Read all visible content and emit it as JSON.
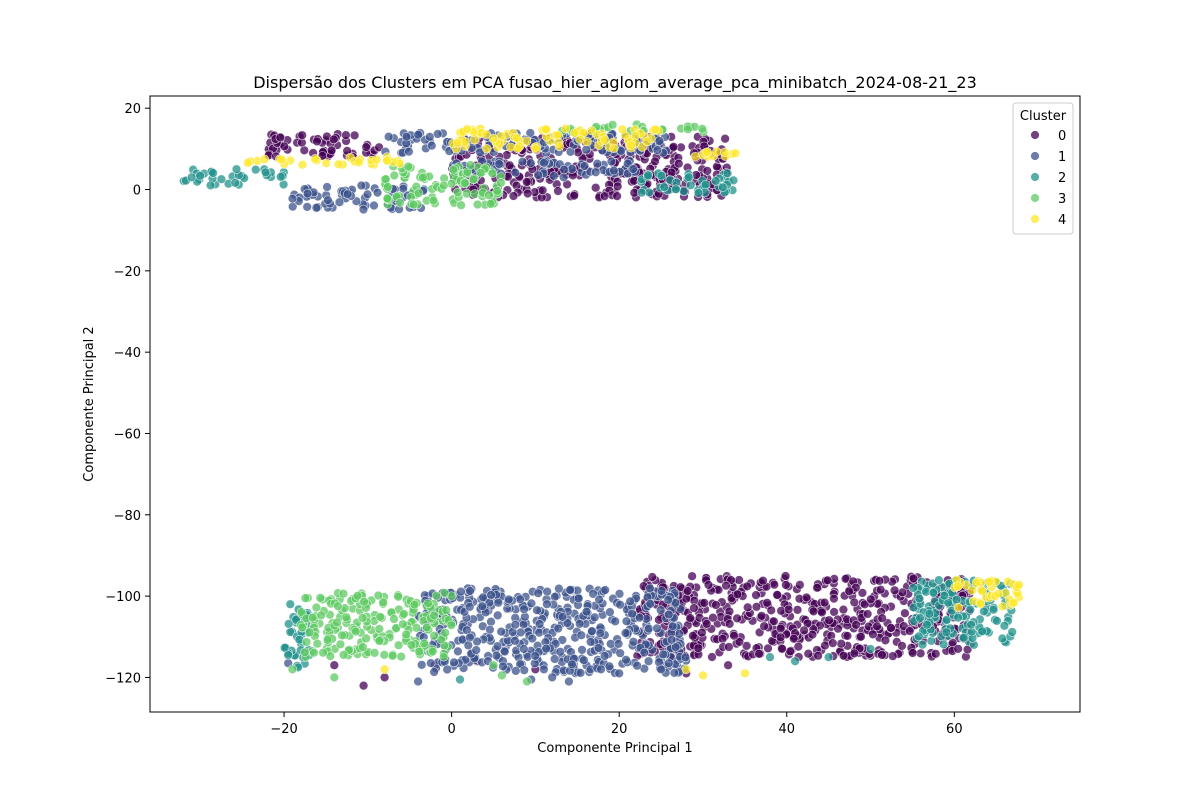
{
  "chart_data": {
    "type": "scatter",
    "title": "Dispersão dos Clusters em PCA fusao_hier_aglom_average_pca_minibatch_2024-08-21_23",
    "xlabel": "Componente Principal 1",
    "ylabel": "Componente Principal 2",
    "xlim": [
      -36,
      75
    ],
    "ylim": [
      -128.5,
      23
    ],
    "xticks": [
      -20,
      0,
      20,
      40,
      60
    ],
    "yticks": [
      20,
      0,
      -20,
      -40,
      -60,
      -80,
      -100,
      -120
    ],
    "xtick_labels": [
      "−20",
      "0",
      "20",
      "40",
      "60"
    ],
    "ytick_labels": [
      "20",
      "0",
      "−20",
      "−40",
      "−60",
      "−80",
      "−100",
      "−120"
    ],
    "grid": false,
    "legend": {
      "title": "Cluster",
      "placement": "top-right",
      "entries": [
        "0",
        "1",
        "2",
        "3",
        "4"
      ]
    },
    "series": [
      {
        "name": "0",
        "color": "#440154",
        "regions": [
          {
            "x": [
              0,
              33
            ],
            "y": [
              -2,
              13
            ]
          },
          {
            "x": [
              -22,
              -8
            ],
            "y": [
              8,
              14
            ]
          },
          {
            "x": [
              22,
              62
            ],
            "y": [
              -115,
              -95
            ]
          }
        ],
        "points": [
          [
            -10.5,
            -122
          ],
          [
            -8,
            -120
          ],
          [
            -14,
            -117
          ],
          [
            3,
            -116
          ],
          [
            28,
            -119
          ],
          [
            -2,
            -117
          ],
          [
            10,
            -118
          ],
          [
            33,
            -117
          ]
        ]
      },
      {
        "name": "1",
        "color": "#3b528b",
        "regions": [
          {
            "x": [
              -19,
              -3
            ],
            "y": [
              -5,
              1
            ]
          },
          {
            "x": [
              -8,
              26
            ],
            "y": [
              9,
              14
            ]
          },
          {
            "x": [
              0,
              22
            ],
            "y": [
              3,
              7
            ]
          },
          {
            "x": [
              -4,
              28
            ],
            "y": [
              -119,
              -98
            ]
          }
        ],
        "points": [
          [
            -19.5,
            -116.5
          ],
          [
            -18,
            -106
          ],
          [
            -4,
            -121
          ],
          [
            14,
            -121
          ],
          [
            9.5,
            -120.5
          ],
          [
            12,
            -120
          ],
          [
            20,
            -119
          ],
          [
            25,
            -118
          ]
        ]
      },
      {
        "name": "2",
        "color": "#21918c",
        "regions": [
          {
            "x": [
              -32,
              -20
            ],
            "y": [
              1,
              5
            ]
          },
          {
            "x": [
              22,
              34
            ],
            "y": [
              -1,
              4
            ]
          },
          {
            "x": [
              -20,
              -17
            ],
            "y": [
              -118,
              -101
            ]
          },
          {
            "x": [
              55,
              67
            ],
            "y": [
              -112,
              -96
            ]
          }
        ],
        "points": [
          [
            1,
            -120.5
          ],
          [
            -19.5,
            -114.5
          ],
          [
            38,
            -115
          ],
          [
            45,
            -115
          ],
          [
            50,
            -113
          ],
          [
            41,
            -116
          ],
          [
            62,
            -107
          ]
        ]
      },
      {
        "name": "3",
        "color": "#5ec962",
        "regions": [
          {
            "x": [
              -8,
              6
            ],
            "y": [
              -4,
              6
            ]
          },
          {
            "x": [
              13,
              31
            ],
            "y": [
              14,
              16
            ]
          },
          {
            "x": [
              -18,
              0
            ],
            "y": [
              -115,
              -99
            ]
          }
        ],
        "points": [
          [
            -19,
            -118
          ],
          [
            9,
            -121
          ],
          [
            6,
            -119.5
          ],
          [
            5,
            -117
          ],
          [
            -14,
            -120
          ]
        ]
      },
      {
        "name": "4",
        "color": "#fde725",
        "regions": [
          {
            "x": [
              -25,
              -5
            ],
            "y": [
              6,
              8
            ]
          },
          {
            "x": [
              0,
              25
            ],
            "y": [
              10,
              15
            ]
          },
          {
            "x": [
              29,
              34
            ],
            "y": [
              8,
              10
            ]
          },
          {
            "x": [
              60,
              68
            ],
            "y": [
              -103,
              -96
            ]
          }
        ],
        "points": [
          [
            30,
            -119.5
          ],
          [
            35,
            -119
          ],
          [
            28,
            -118
          ],
          [
            -8,
            -118
          ]
        ]
      }
    ]
  }
}
